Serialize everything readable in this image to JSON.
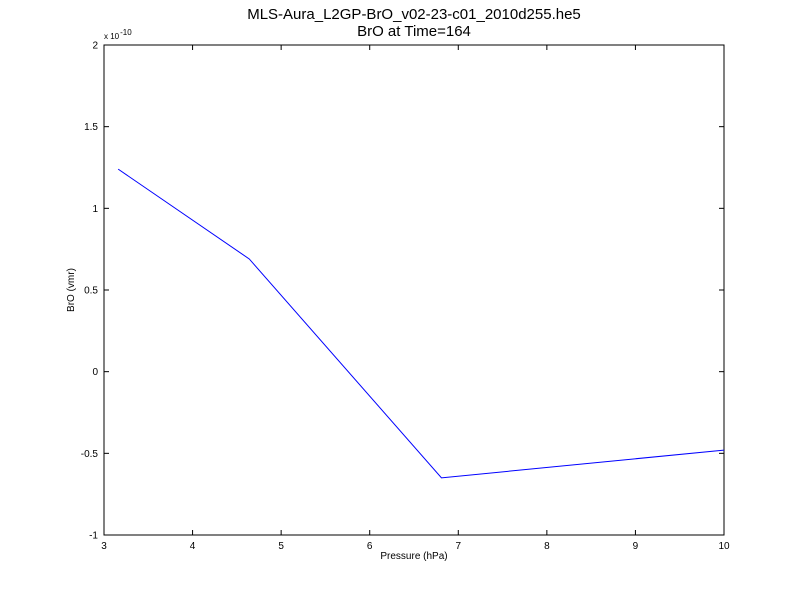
{
  "chart_data": {
    "type": "line",
    "title_line1": "MLS-Aura_L2GP-BrO_v02-23-c01_2010d255.he5",
    "title_line2": "BrO at Time=164",
    "xlabel": "Pressure (hPa)",
    "ylabel": "BrO (vmr)",
    "y_multiplier_base": "x 10",
    "y_multiplier_exp": "-10",
    "xlim": [
      3,
      10
    ],
    "ylim": [
      -1,
      2
    ],
    "xticks": [
      3,
      4,
      5,
      6,
      7,
      8,
      9,
      10
    ],
    "xtick_labels": [
      "3",
      "4",
      "5",
      "6",
      "7",
      "8",
      "9",
      "10"
    ],
    "yticks": [
      -1,
      -0.5,
      0,
      0.5,
      1,
      1.5,
      2
    ],
    "ytick_labels": [
      "-1",
      "-0.5",
      "0",
      "0.5",
      "1",
      "1.5",
      "2"
    ],
    "grid": false,
    "line_color": "#0000ff",
    "series": [
      {
        "x": [
          3.16,
          4.64,
          6.81,
          10.0
        ],
        "y": [
          1.24,
          0.69,
          -0.65,
          -0.48
        ]
      }
    ]
  }
}
